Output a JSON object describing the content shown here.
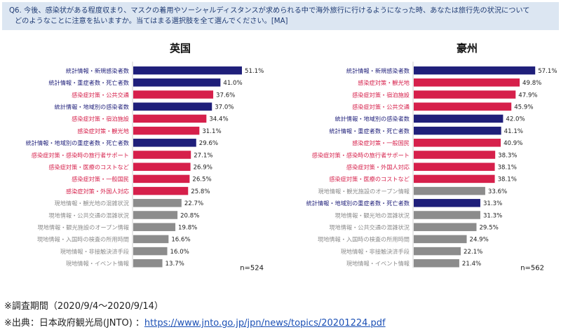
{
  "question": {
    "line1": "Q6. 今後、感染状がある程度収まり、マスクの着用やソーシャルディスタンスが求められる中で海外旅行に行けるようになった時、あなたは旅行先の状況について",
    "line2": "どのようなことに注意を払いますか。当てはまる選択肢を全て選んでください。[MA]"
  },
  "colors": {
    "stat": "#1f1f7a",
    "infection": "#d6204b",
    "local": "#8c8c8c"
  },
  "chart_data": [
    {
      "type": "bar",
      "orientation": "horizontal",
      "title": "英国",
      "n_label": "n=524",
      "xlim": [
        0,
        60
      ],
      "categories": [
        "統計情報・新規感染者数",
        "統計情報・重症者数・死亡者数",
        "感染症対策・公共交通",
        "統計情報・地域別の感染者数",
        "感染症対策・宿泊施設",
        "感染症対策・観光地",
        "統計情報・地域別の重症者数・死亡者数",
        "感染症対策・感染時の旅行者サポート",
        "感染症対策・医療のコストなど",
        "感染症対策・一般国民",
        "感染症対策・外国人対応",
        "現地情報・観光地の混雑状況",
        "現地情報・公共交通の混雑状況",
        "現地情報・観光施設のオープン情報",
        "現地情報・入国時の検査の所用時間",
        "現地情報・非接触決済手段",
        "現地情報・イベント情報"
      ],
      "values": [
        51.1,
        41.0,
        37.6,
        37.0,
        34.4,
        31.1,
        29.6,
        27.1,
        26.9,
        26.5,
        25.8,
        22.7,
        20.8,
        19.8,
        16.6,
        16.0,
        13.7
      ],
      "value_labels": [
        "51.1%",
        "41.0%",
        "37.6%",
        "37.0%",
        "34.4%",
        "31.1%",
        "29.6%",
        "27.1%",
        "26.9%",
        "26.5%",
        "25.8%",
        "22.7%",
        "20.8%",
        "19.8%",
        "16.6%",
        "16.0%",
        "13.7%"
      ],
      "groups": [
        "stat",
        "stat",
        "infection",
        "stat",
        "infection",
        "infection",
        "stat",
        "infection",
        "infection",
        "infection",
        "infection",
        "local",
        "local",
        "local",
        "local",
        "local",
        "local"
      ]
    },
    {
      "type": "bar",
      "orientation": "horizontal",
      "title": "豪州",
      "n_label": "n=562",
      "xlim": [
        0,
        60
      ],
      "categories": [
        "統計情報・新規感染者数",
        "感染症対策・観光地",
        "感染症対策・宿泊施設",
        "感染症対策・公共交通",
        "統計情報・地域別の感染者数",
        "統計情報・重症者数・死亡者数",
        "感染症対策・一般国民",
        "感染症対策・感染時の旅行者サポート",
        "感染症対策・外国人対応",
        "感染症対策・医療のコストなど",
        "現地情報・観光施設のオープン情報",
        "統計情報・地域別の重症者数・死亡者数",
        "現地情報・観光地の混雑状況",
        "現地情報・公共交通の混雑状況",
        "現地情報・入国時の検査の所用時間",
        "現地情報・非接触決済手段",
        "現地情報・イベント情報"
      ],
      "values": [
        57.1,
        49.8,
        47.9,
        45.9,
        42.0,
        41.1,
        40.9,
        38.3,
        38.1,
        38.1,
        33.6,
        31.3,
        31.3,
        29.5,
        24.9,
        22.1,
        21.4
      ],
      "value_labels": [
        "57.1%",
        "49.8%",
        "47.9%",
        "45.9%",
        "42.0%",
        "41.1%",
        "40.9%",
        "38.3%",
        "38.1%",
        "38.1%",
        "33.6%",
        "31.3%",
        "31.3%",
        "29.5%",
        "24.9%",
        "22.1%",
        "21.4%"
      ],
      "groups": [
        "stat",
        "infection",
        "infection",
        "infection",
        "stat",
        "stat",
        "infection",
        "infection",
        "infection",
        "infection",
        "local",
        "stat",
        "local",
        "local",
        "local",
        "local",
        "local"
      ]
    }
  ],
  "footer": {
    "period": "※調査期間（2020/9/4～2020/9/14）",
    "source_prefix": "※出典：日本政府観光局(JNTO) ：",
    "source_url": "https://www.jnto.go.jp/jpn/news/topics/20201224.pdf"
  }
}
